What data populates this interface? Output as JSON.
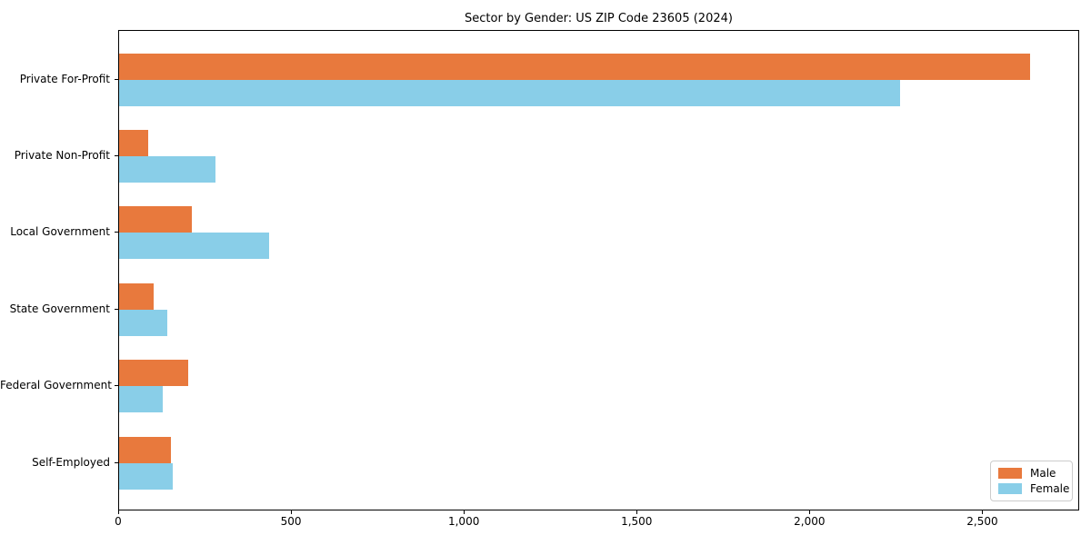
{
  "chart_data": {
    "type": "bar",
    "orientation": "horizontal",
    "title": "Sector by Gender: US ZIP Code 23605 (2024)",
    "categories": [
      "Private For-Profit",
      "Private Non-Profit",
      "Local Government",
      "State Government",
      "Federal Government",
      "Self-Employed"
    ],
    "series": [
      {
        "name": "Male",
        "color": "#E8793D",
        "values": [
          2635,
          85,
          210,
          100,
          200,
          150
        ]
      },
      {
        "name": "Female",
        "color": "#89CEE8",
        "values": [
          2260,
          280,
          435,
          140,
          125,
          155
        ]
      }
    ],
    "xlabel": "",
    "ylabel": "",
    "xlim": [
      0,
      2775
    ],
    "xticks": [
      0,
      500,
      1000,
      1500,
      2000,
      2500
    ],
    "xtick_labels": [
      "0",
      "500",
      "1,000",
      "1,500",
      "2,000",
      "2,500"
    ],
    "grid": false,
    "legend": {
      "position": "lower right"
    }
  }
}
